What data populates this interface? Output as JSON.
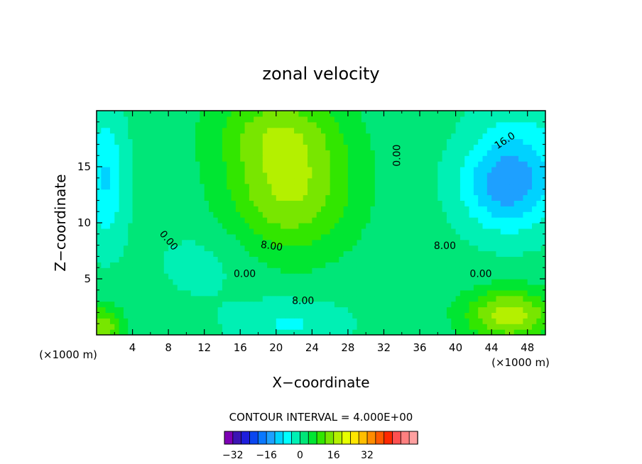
{
  "chart_data": {
    "type": "heatmap",
    "title": "zonal velocity",
    "xlabel": "X−coordinate",
    "ylabel": "Z−coordinate",
    "x_unit": "(×1000 m)",
    "y_unit": "(×1000 m)",
    "xlim": [
      0,
      50
    ],
    "ylim": [
      0,
      20
    ],
    "x_ticks": [
      4,
      8,
      12,
      16,
      20,
      24,
      28,
      32,
      36,
      40,
      44,
      48
    ],
    "y_ticks": [
      5,
      10,
      15
    ],
    "contour_interval_text": "CONTOUR INTERVAL = 4.000E+00",
    "contour_labels": [
      {
        "x": 33.5,
        "y": 16.0,
        "text": "0.00",
        "angle": -90
      },
      {
        "x": 45.5,
        "y": 17.3,
        "text": "16.0",
        "angle": -33
      },
      {
        "x": 8.0,
        "y": 8.4,
        "text": "0.00",
        "angle": 50
      },
      {
        "x": 19.5,
        "y": 7.9,
        "text": "8.00",
        "angle": 8
      },
      {
        "x": 38.8,
        "y": 7.9,
        "text": "8.00",
        "angle": 0
      },
      {
        "x": 16.5,
        "y": 5.4,
        "text": "0.00",
        "angle": 0
      },
      {
        "x": 42.8,
        "y": 5.4,
        "text": "0.00",
        "angle": 0
      },
      {
        "x": 23.0,
        "y": 3.0,
        "text": "8.00",
        "angle": 0
      }
    ],
    "colorbar": {
      "min": -36,
      "max": 36,
      "step": 4,
      "tick_labels": [
        "−32",
        "−16",
        "0",
        "16",
        "32"
      ],
      "tick_values": [
        -32,
        -16,
        0,
        16,
        32
      ],
      "colors": [
        "#7d00b4",
        "#3c14b4",
        "#1e1edc",
        "#0a46f0",
        "#0a78ff",
        "#1ea0ff",
        "#00d2ff",
        "#00ffff",
        "#00f0b4",
        "#00e678",
        "#00e632",
        "#32e600",
        "#78e600",
        "#b4f000",
        "#e6ff00",
        "#ffe600",
        "#ffbe00",
        "#ff8c00",
        "#ff5a00",
        "#ff2800",
        "#ff5050",
        "#ff8080",
        "#ffa0a0"
      ]
    },
    "field_description": "Zonal velocity on an x-z grid; negative (blue) core near x=45 z=13, positive (yellow/orange) core near x=21 z=13 and near surface at x=46",
    "field_centers": [
      {
        "x": 45.5,
        "y": 13.3,
        "value": -12.5,
        "sigma_x": 3.5,
        "sigma_y": 2.8
      },
      {
        "x": 47.5,
        "y": 16.0,
        "value": -6,
        "sigma_x": 4.0,
        "sigma_y": 4.0
      },
      {
        "x": 1.0,
        "y": 14.0,
        "value": -10,
        "sigma_x": 1.6,
        "sigma_y": 4.0
      },
      {
        "x": 21.5,
        "y": 13.0,
        "value": 15,
        "sigma_x": 5.0,
        "sigma_y": 4.0
      },
      {
        "x": 20.0,
        "y": 18.5,
        "value": 9,
        "sigma_x": 5.0,
        "sigma_y": 2.5
      },
      {
        "x": 46.0,
        "y": 1.8,
        "value": 17,
        "sigma_x": 3.5,
        "sigma_y": 1.6
      },
      {
        "x": 0.6,
        "y": 0.6,
        "value": 14,
        "sigma_x": 1.6,
        "sigma_y": 1.4
      },
      {
        "x": 21.5,
        "y": 1.0,
        "value": -6,
        "sigma_x": 4.5,
        "sigma_y": 1.6
      },
      {
        "x": 12.0,
        "y": 6.5,
        "value": -3,
        "sigma_x": 4.0,
        "sigma_y": 2.5
      }
    ],
    "field_background": 1.5
  }
}
